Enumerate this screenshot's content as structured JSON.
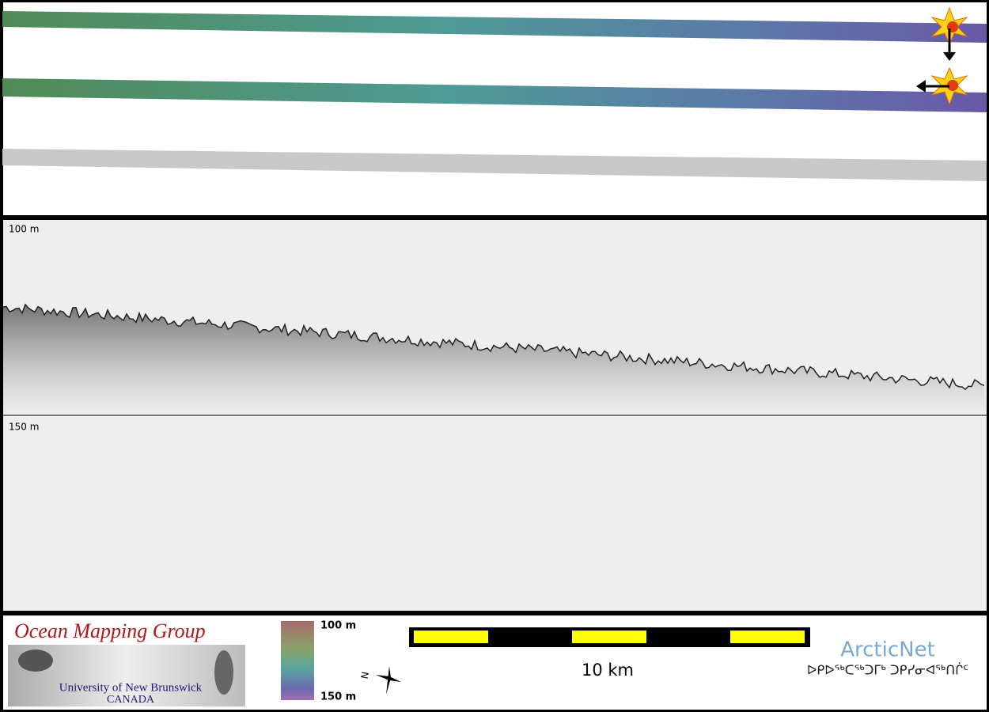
{
  "profile": {
    "top_label": "100 m",
    "bottom_label": "150 m"
  },
  "legend": {
    "logo_title": "Ocean Mapping Group",
    "logo_line1": "University of New Brunswick",
    "logo_line2": "CANADA",
    "colorbar_top": "100 m",
    "colorbar_bottom": "150 m",
    "north": "N",
    "scale": "10 km",
    "partner": "ArcticNet",
    "partner_syllabics": "ᐅᑭᐅᖅᑕᖅᑐᒥᒃ ᑐᑭᓯᓂᐊᖅᑎᒌᑦ"
  }
}
